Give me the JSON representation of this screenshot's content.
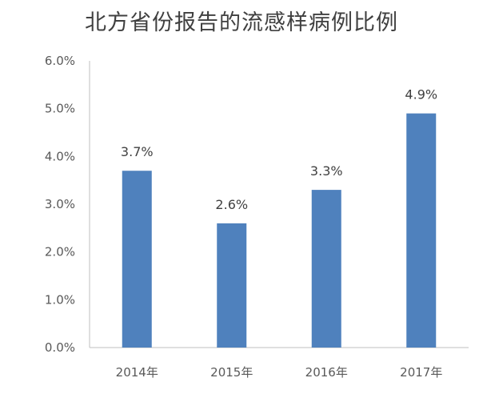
{
  "chart_data": {
    "type": "bar",
    "title": "北方省份报告的流感样病例比例",
    "categories": [
      "2014年",
      "2015年",
      "2016年",
      "2017年"
    ],
    "values": [
      3.7,
      2.6,
      3.3,
      4.9
    ],
    "data_labels": [
      "3.7%",
      "2.6%",
      "3.3%",
      "4.9%"
    ],
    "ylim": [
      0,
      6.0
    ],
    "yticks": [
      "0.0%",
      "1.0%",
      "2.0%",
      "3.0%",
      "4.0%",
      "5.0%",
      "6.0%"
    ],
    "xlabel": "",
    "ylabel": "",
    "grid": false,
    "bar_color": "#4f81bd"
  }
}
